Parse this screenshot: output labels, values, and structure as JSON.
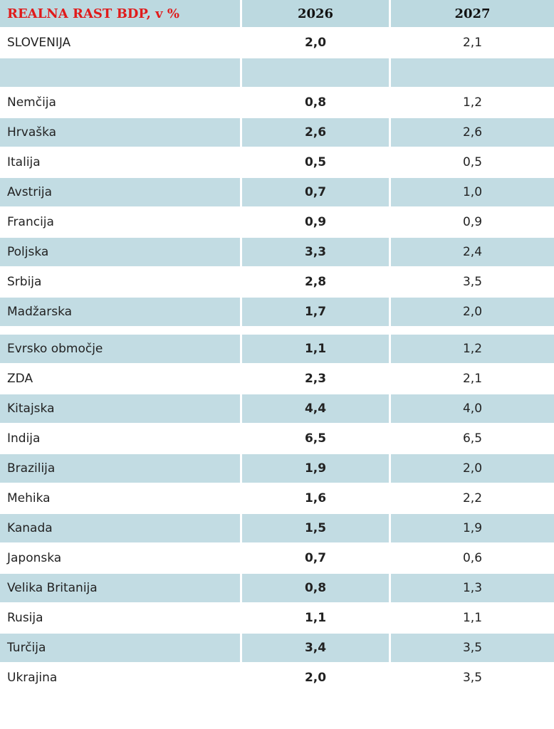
{
  "table": {
    "header": {
      "title": "REALNA RAST BDP, v %",
      "col1": "2026",
      "col2": "2027"
    },
    "colors": {
      "title": "#e01b1b",
      "shade": "#c2dce3",
      "header_bg": "#bcd9e0"
    },
    "group1": [
      {
        "country": "SLOVENIJA",
        "v2026": "2,0",
        "v2027": "2,1",
        "shaded": false
      },
      {
        "country": "",
        "v2026": "",
        "v2027": "",
        "shaded": true
      }
    ],
    "group2": [
      {
        "country": "Nemčija",
        "v2026": "0,8",
        "v2027": "1,2",
        "shaded": false
      },
      {
        "country": "Hrvaška",
        "v2026": "2,6",
        "v2027": "2,6",
        "shaded": true
      },
      {
        "country": "Italija",
        "v2026": "0,5",
        "v2027": "0,5",
        "shaded": false
      },
      {
        "country": "Avstrija",
        "v2026": "0,7",
        "v2027": "1,0",
        "shaded": true
      },
      {
        "country": "Francija",
        "v2026": "0,9",
        "v2027": "0,9",
        "shaded": false
      },
      {
        "country": "Poljska",
        "v2026": "3,3",
        "v2027": "2,4",
        "shaded": true
      },
      {
        "country": "Srbija",
        "v2026": "2,8",
        "v2027": "3,5",
        "shaded": false
      },
      {
        "country": "Madžarska",
        "v2026": "1,7",
        "v2027": "2,0",
        "shaded": true
      }
    ],
    "group3": [
      {
        "country": "Evrsko območje",
        "v2026": "1,1",
        "v2027": "1,2",
        "shaded": true
      },
      {
        "country": "ZDA",
        "v2026": "2,3",
        "v2027": "2,1",
        "shaded": false
      },
      {
        "country": "Kitajska",
        "v2026": "4,4",
        "v2027": "4,0",
        "shaded": true
      },
      {
        "country": "Indija",
        "v2026": "6,5",
        "v2027": "6,5",
        "shaded": false
      },
      {
        "country": "Brazilija",
        "v2026": "1,9",
        "v2027": "2,0",
        "shaded": true
      },
      {
        "country": "Mehika",
        "v2026": "1,6",
        "v2027": "2,2",
        "shaded": false
      },
      {
        "country": "Kanada",
        "v2026": "1,5",
        "v2027": "1,9",
        "shaded": true
      },
      {
        "country": "Japonska",
        "v2026": "0,7",
        "v2027": "0,6",
        "shaded": false
      },
      {
        "country": "Velika Britanija",
        "v2026": "0,8",
        "v2027": "1,3",
        "shaded": true
      },
      {
        "country": "Rusija",
        "v2026": "1,1",
        "v2027": "1,1",
        "shaded": false
      },
      {
        "country": "Turčija",
        "v2026": "3,4",
        "v2027": "3,5",
        "shaded": true
      },
      {
        "country": "Ukrajina",
        "v2026": "2,0",
        "v2027": "3,5",
        "shaded": false
      }
    ]
  }
}
